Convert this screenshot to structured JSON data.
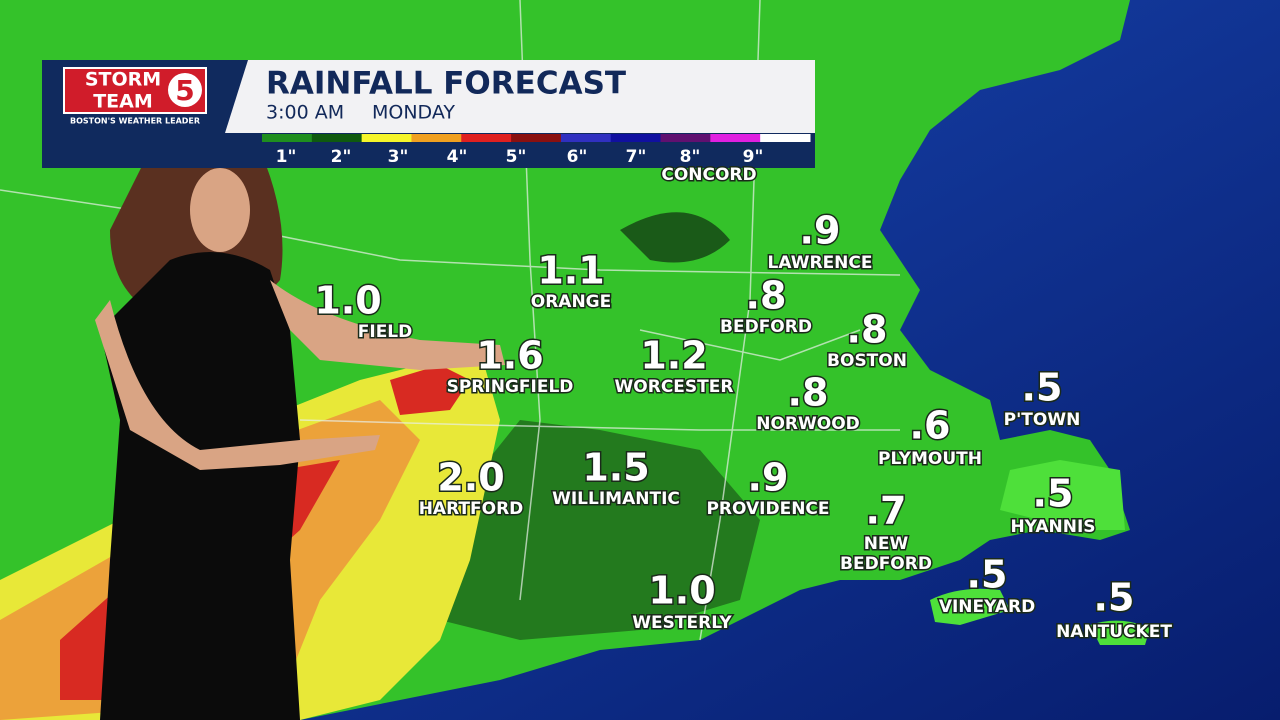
{
  "header": {
    "logo": {
      "line1": "STORM",
      "line2": "TEAM",
      "number": "5",
      "tagline": "BOSTON'S WEATHER LEADER"
    },
    "title": "RAINFALL FORECAST",
    "time": "3:00 AM",
    "day": "MONDAY"
  },
  "legend": {
    "labels": [
      "1\"",
      "2\"",
      "3\"",
      "4\"",
      "5\"",
      "6\"",
      "7\"",
      "8\"",
      "9\""
    ],
    "colors": [
      "#1f8f1f",
      "#0f5a0f",
      "#f5f52a",
      "#f0a020",
      "#e02020",
      "#8a1010",
      "#3030c0",
      "#1010a0",
      "#601070",
      "#e020e0",
      "#ffffff"
    ]
  },
  "cities": [
    {
      "name": "CONCORD"
    },
    {
      "value": ".9",
      "name": "LAWRENCE"
    },
    {
      "value": "1.1",
      "name": "ORANGE"
    },
    {
      "value": "1.0",
      "name": "FIELD"
    },
    {
      "value": ".8",
      "name": "BEDFORD"
    },
    {
      "value": ".8",
      "name": "BOSTON"
    },
    {
      "value": "1.6",
      "name": "SPRINGFIELD"
    },
    {
      "value": "1.2",
      "name": "WORCESTER"
    },
    {
      "value": ".8",
      "name": "NORWOOD"
    },
    {
      "value": ".5",
      "name": "P'TOWN"
    },
    {
      "value": ".6",
      "name": "PLYMOUTH"
    },
    {
      "value": "2.0",
      "name": "HARTFORD"
    },
    {
      "value": "1.5",
      "name": "WILLIMANTIC"
    },
    {
      "value": ".9",
      "name": "PROVIDENCE"
    },
    {
      "value": ".5",
      "name": "HYANNIS"
    },
    {
      "value": ".7",
      "name": [
        "NEW",
        "BEDFORD"
      ]
    },
    {
      "value": "1.0",
      "name": "WESTERLY"
    },
    {
      "value": ".5",
      "name": "VINEYARD"
    },
    {
      "value": ".5",
      "name": "NANTUCKET"
    }
  ]
}
